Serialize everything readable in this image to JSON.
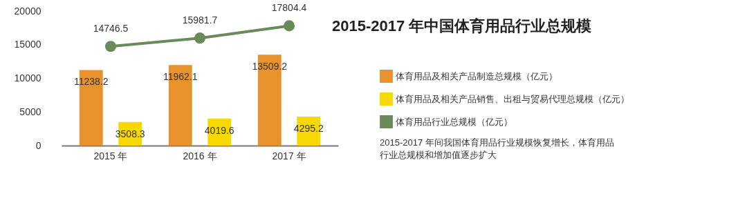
{
  "chart_data": {
    "type": "bar",
    "title": "2015-2017 年中国体育用品行业总规模",
    "categories": [
      "2015 年",
      "2016 年",
      "2017 年"
    ],
    "series": [
      {
        "name": "体育用品及相关产品制造总规模（亿元）",
        "color": "#e8922e",
        "values": [
          11238.2,
          11962.1,
          13509.2
        ]
      },
      {
        "name": "体育用品及相关产品销售、出租与贸易代理总规模（亿元）",
        "color": "#f7d800",
        "values": [
          3508.3,
          4019.6,
          4295.2
        ]
      },
      {
        "name": "体育用品行业总规模（亿元）",
        "type": "line",
        "color": "#6a8a5a",
        "marker": "circle",
        "values": [
          14746.5,
          15981.7,
          17804.4
        ]
      }
    ],
    "ylim": [
      0,
      20000
    ],
    "yticks": [
      0,
      5000,
      10000,
      15000,
      20000
    ],
    "data_labels": true,
    "grid": false,
    "legend": "right",
    "annotations": [
      "2015-2017 年间我国体育用品行业规模恢复增长，体育用品行业总规模和增加值逐步扩大"
    ]
  }
}
